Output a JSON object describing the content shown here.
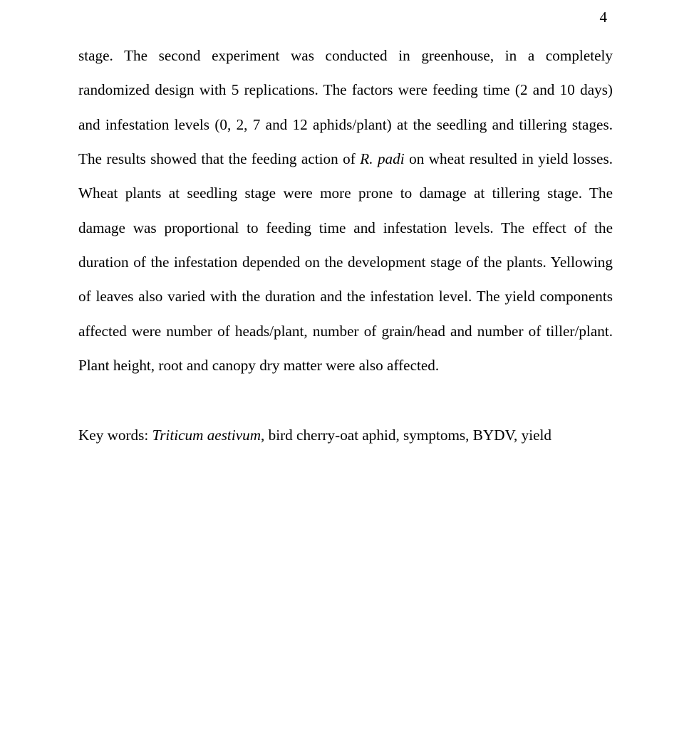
{
  "page_number": "4",
  "paragraph": {
    "pre_italic": "stage. The second experiment was conducted in greenhouse, in a completely randomized design with 5 replications. The factors were feeding time (2 and 10 days) and infestation levels (0, 2, 7 and 12 aphids/plant) at the seedling and tillering stages. The results showed that the feeding action of ",
    "italic": "R. padi",
    "post_italic": " on wheat resulted in yield losses. Wheat plants at seedling stage were more prone to damage at tillering stage. The damage was proportional to feeding time and infestation levels. The effect of the duration of the infestation depended on the development stage of the plants. Yellowing of leaves also varied with the duration and the infestation level. The yield components affected were number of heads/plant, number of grain/head and number of tiller/plant. Plant height, root and canopy dry matter were also affected."
  },
  "keywords": {
    "label": "Key words",
    "separator": ": ",
    "value": "Triticum aestivum",
    "rest": ", bird cherry-oat aphid, symptoms, BYDV, yield"
  }
}
